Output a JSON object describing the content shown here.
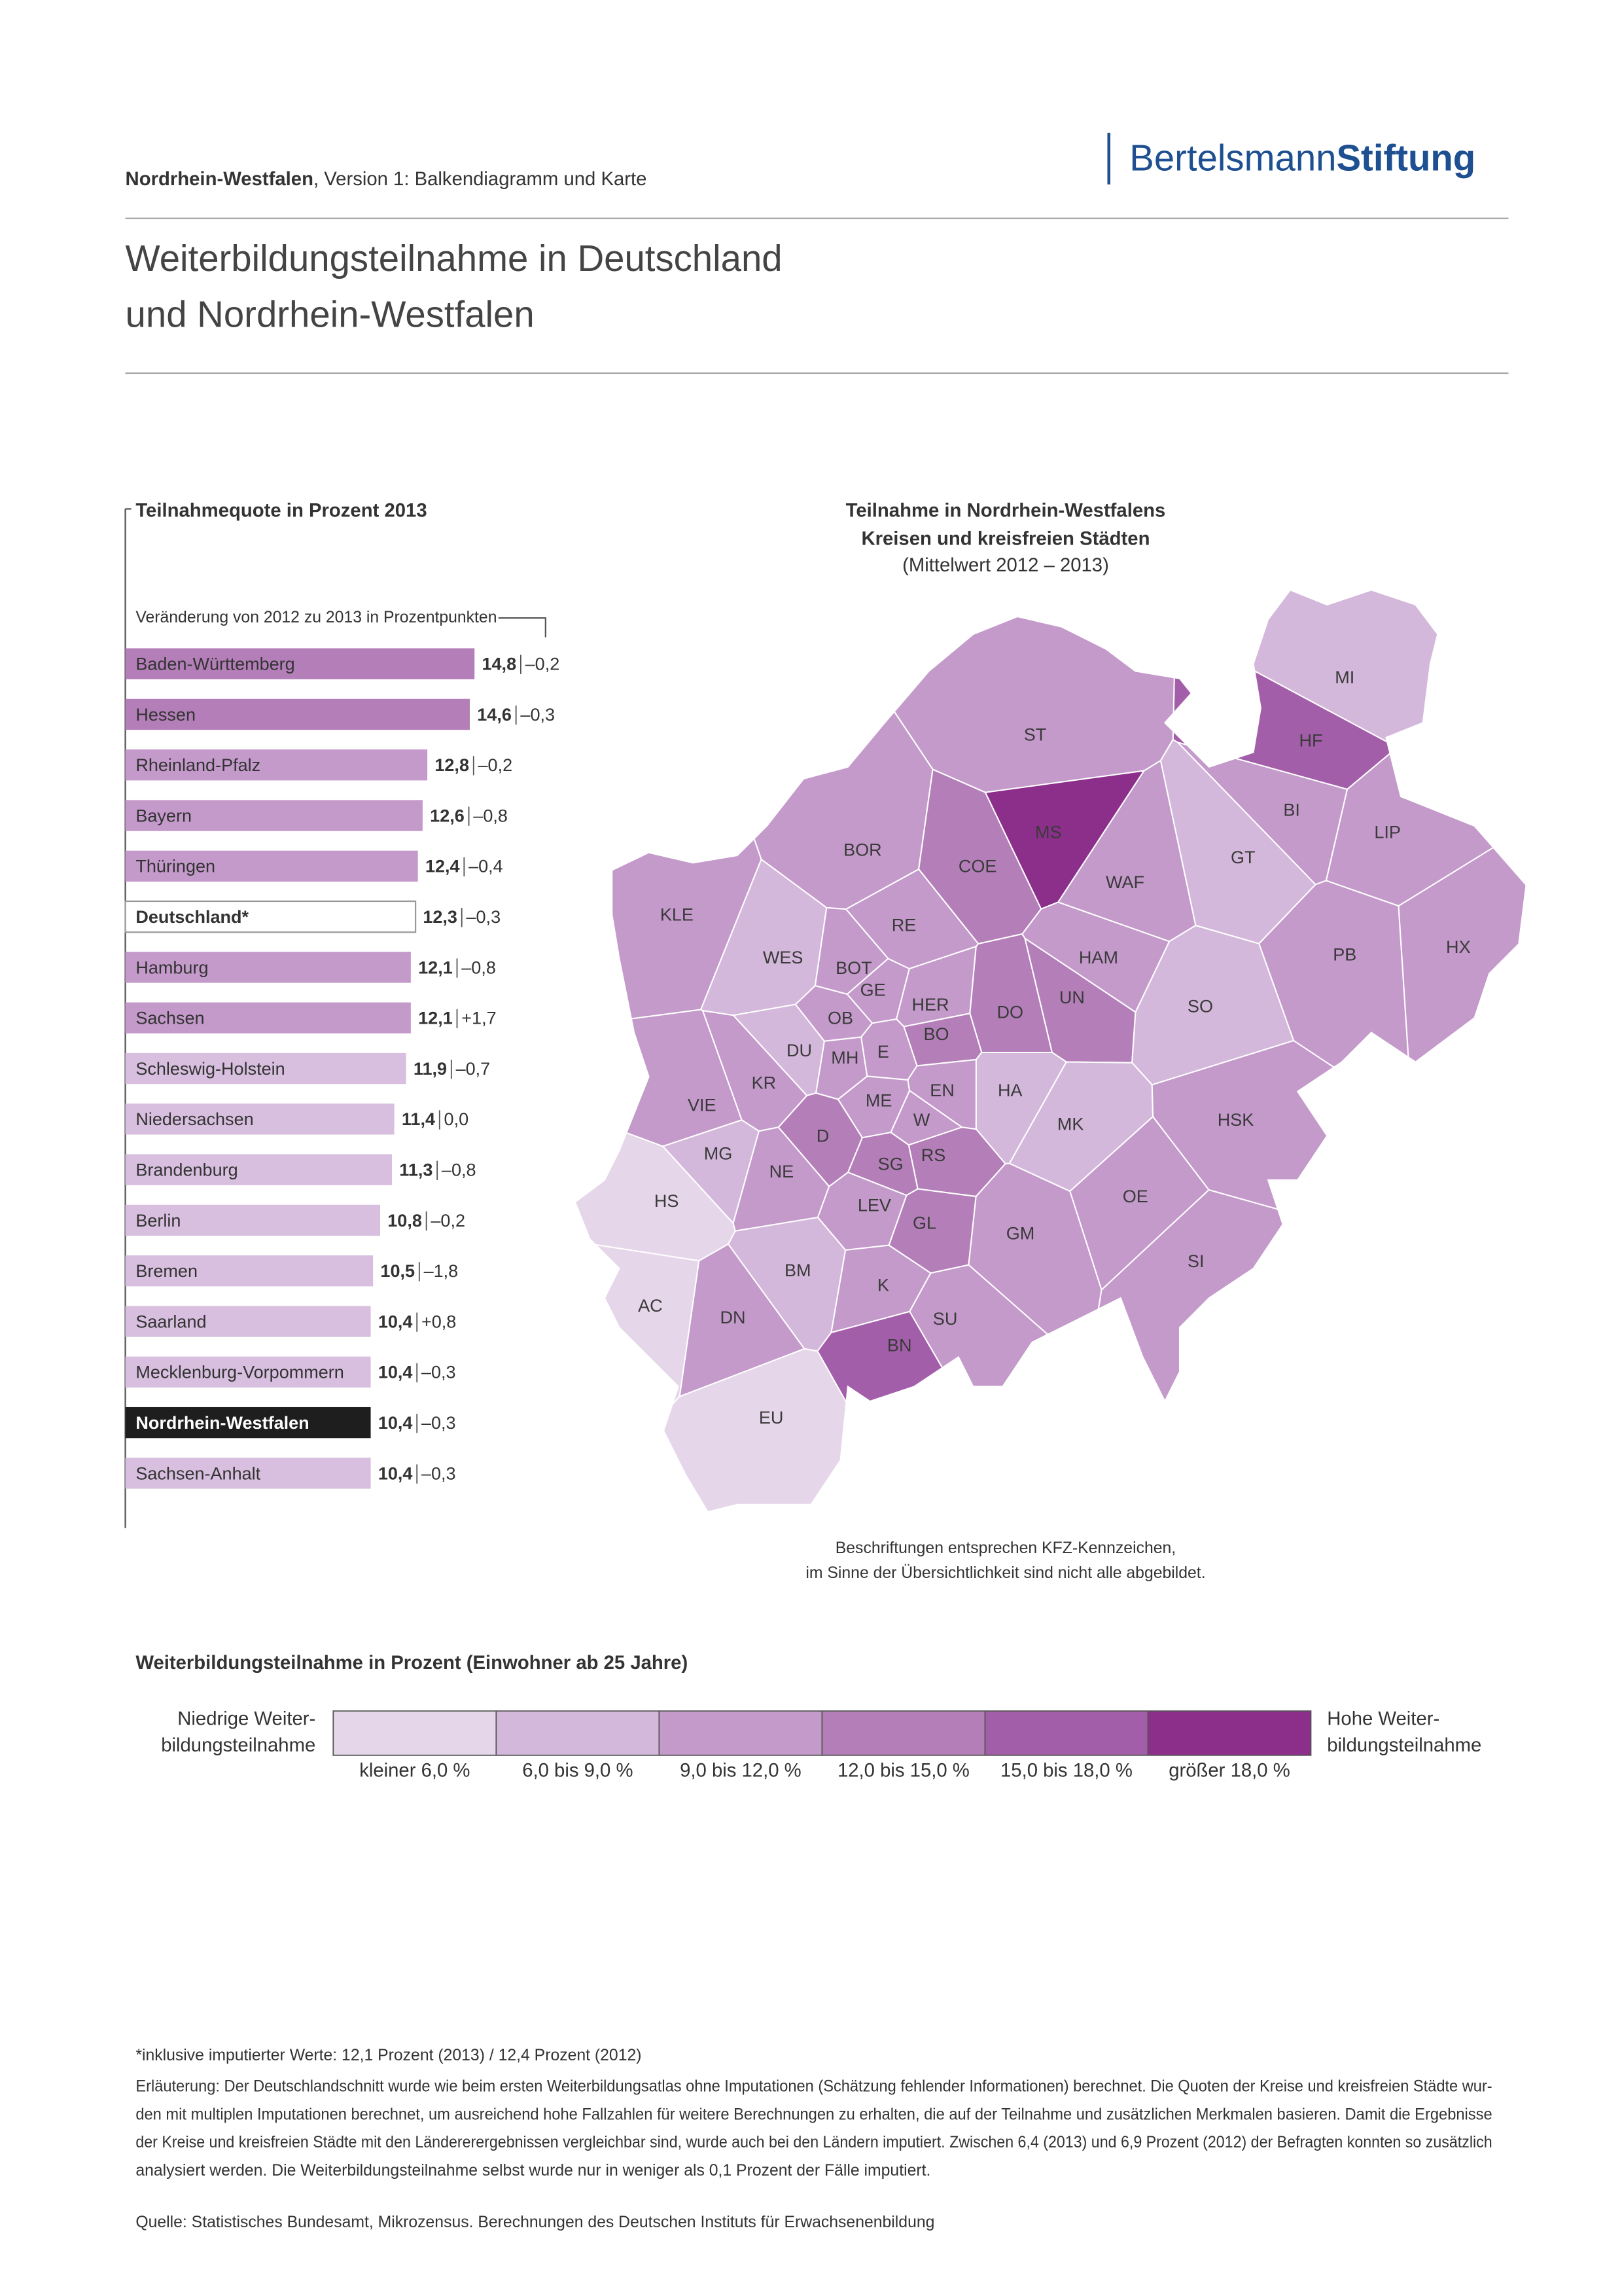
{
  "header": {
    "region": "Nordrhein-Westfalen",
    "version": ", Version 1: Balkendiagramm und Karte",
    "logo": [
      "Bertelsmann",
      "Stiftung"
    ]
  },
  "title": [
    "Weiterbildungsteilnahme in Deutschland",
    "und Nordrhein-Westfalen"
  ],
  "chart_data": {
    "type": "bar",
    "orientation": "horizontal",
    "title": "Teilnahmequote in Prozent 2013",
    "subtitle": "Veränderung von 2012 zu 2013 in Prozentpunkten",
    "categories": [
      "Baden-Württemberg",
      "Hessen",
      "Rheinland-Pfalz",
      "Bayern",
      "Thüringen",
      "Deutschland*",
      "Hamburg",
      "Sachsen",
      "Schleswig-Holstein",
      "Niedersachsen",
      "Brandenburg",
      "Berlin",
      "Bremen",
      "Saarland",
      "Mecklenburg-Vorpommern",
      "Nordrhein-Westfalen",
      "Sachsen-Anhalt"
    ],
    "values": [
      14.8,
      14.6,
      12.8,
      12.6,
      12.4,
      12.3,
      12.1,
      12.1,
      11.9,
      11.4,
      11.3,
      10.8,
      10.5,
      10.4,
      10.4,
      10.4,
      10.4
    ],
    "value_labels": [
      "14,8",
      "14,6",
      "12,8",
      "12,6",
      "12,4",
      "12,3",
      "12,1",
      "12,1",
      "11,9",
      "11,4",
      "11,3",
      "10,8",
      "10,5",
      "10,4",
      "10,4",
      "10,4",
      "10,4"
    ],
    "change_labels": [
      "–0,2",
      "–0,3",
      "–0,2",
      "–0,8",
      "–0,4",
      "–0,3",
      "–0,8",
      "+1,7",
      "–0,7",
      "0,0",
      "–0,8",
      "–0,2",
      "–1,8",
      "+0,8",
      "–0,3",
      "–0,3",
      "–0,3"
    ],
    "colors": [
      "#b47fb9",
      "#b47fb9",
      "#c49acb",
      "#c49acb",
      "#c49acb",
      "#ffffff",
      "#c49acb",
      "#c49acb",
      "#d8bfdf",
      "#d8bfdf",
      "#d8bfdf",
      "#d8bfdf",
      "#d8bfdf",
      "#d8bfdf",
      "#d8bfdf",
      "#1e1e1e",
      "#d8bfdf"
    ]
  },
  "map": {
    "title": [
      "Teilnahme in Nordrhein-Westfalens",
      "Kreisen und kreisfreien Städten",
      "(Mittelwert 2012 – 2013)"
    ],
    "regions": [
      {
        "label": "MI",
        "color": "#d4b8dc"
      },
      {
        "label": "HF",
        "color": "#a35ea9"
      },
      {
        "label": "ST",
        "color": "#c49acb"
      },
      {
        "label": "BI",
        "color": "#c49acb"
      },
      {
        "label": "LIP",
        "color": "#c49acb"
      },
      {
        "label": "MS",
        "color": "#8c2f8b"
      },
      {
        "label": "BOR",
        "color": "#c49acb"
      },
      {
        "label": "COE",
        "color": "#b47fb9"
      },
      {
        "label": "GT",
        "color": "#d4b8dc"
      },
      {
        "label": "WAF",
        "color": "#c49acb"
      },
      {
        "label": "KLE",
        "color": "#c49acb"
      },
      {
        "label": "RE",
        "color": "#c49acb"
      },
      {
        "label": "WES",
        "color": "#d4b8dc"
      },
      {
        "label": "HAM",
        "color": "#c49acb"
      },
      {
        "label": "PB",
        "color": "#c49acb"
      },
      {
        "label": "HX",
        "color": "#c49acb"
      },
      {
        "label": "BOT",
        "color": "#c49acb"
      },
      {
        "label": "GE",
        "color": "#c49acb"
      },
      {
        "label": "HER",
        "color": "#c49acb"
      },
      {
        "label": "DO",
        "color": "#b47fb9"
      },
      {
        "label": "UN",
        "color": "#b47fb9"
      },
      {
        "label": "SO",
        "color": "#d4b8dc"
      },
      {
        "label": "OB",
        "color": "#c49acb"
      },
      {
        "label": "BO",
        "color": "#b47fb9"
      },
      {
        "label": "DU",
        "color": "#d4b8dc"
      },
      {
        "label": "MH",
        "color": "#c49acb"
      },
      {
        "label": "E",
        "color": "#c49acb"
      },
      {
        "label": "KR",
        "color": "#c49acb"
      },
      {
        "label": "VIE",
        "color": "#c49acb"
      },
      {
        "label": "ME",
        "color": "#c49acb"
      },
      {
        "label": "EN",
        "color": "#c49acb"
      },
      {
        "label": "HA",
        "color": "#d4b8dc"
      },
      {
        "label": "W",
        "color": "#c49acb"
      },
      {
        "label": "MK",
        "color": "#d4b8dc"
      },
      {
        "label": "HSK",
        "color": "#c49acb"
      },
      {
        "label": "D",
        "color": "#b47fb9"
      },
      {
        "label": "MG",
        "color": "#d4b8dc"
      },
      {
        "label": "SG",
        "color": "#b47fb9"
      },
      {
        "label": "RS",
        "color": "#b47fb9"
      },
      {
        "label": "NE",
        "color": "#c49acb"
      },
      {
        "label": "HS",
        "color": "#e6d6ea"
      },
      {
        "label": "OE",
        "color": "#c49acb"
      },
      {
        "label": "LEV",
        "color": "#c49acb"
      },
      {
        "label": "GL",
        "color": "#b47fb9"
      },
      {
        "label": "GM",
        "color": "#c49acb"
      },
      {
        "label": "SI",
        "color": "#c49acb"
      },
      {
        "label": "BM",
        "color": "#d4b8dc"
      },
      {
        "label": "K",
        "color": "#c49acb"
      },
      {
        "label": "AC",
        "color": "#e6d6ea"
      },
      {
        "label": "DN",
        "color": "#c49acb"
      },
      {
        "label": "SU",
        "color": "#c49acb"
      },
      {
        "label": "BN",
        "color": "#a35ea9"
      },
      {
        "label": "EU",
        "color": "#e6d6ea"
      }
    ],
    "note": [
      "Beschriftungen entsprechen KFZ-Kennzeichen,",
      "im Sinne der Übersichtlichkeit sind nicht alle abgebildet."
    ]
  },
  "legend": {
    "title": "Weiterbildungsteilnahme in Prozent (Einwohner ab 25 Jahre)",
    "low": [
      "Niedrige Weiter-",
      "bildungsteilnahme"
    ],
    "high": [
      "Hohe Weiter-",
      "bildungsteilnahme"
    ],
    "classes": [
      {
        "label": "kleiner 6,0 %",
        "color": "#e6d6ea"
      },
      {
        "label": "6,0 bis 9,0 %",
        "color": "#d4b8dc"
      },
      {
        "label": "9,0 bis 12,0 %",
        "color": "#c49acb"
      },
      {
        "label": "12,0 bis 15,0 %",
        "color": "#b47fb9"
      },
      {
        "label": "15,0 bis 18,0 %",
        "color": "#a35ea9"
      },
      {
        "label": "größer 18,0 %",
        "color": "#8c2f8b"
      }
    ]
  },
  "footnotes": {
    "asterisk": "*inklusive imputierter Werte: 12,1 Prozent (2013) / 12,4 Prozent (2012)",
    "explanation": [
      "Erläuterung: Der Deutschlandschnitt wurde wie beim ersten Weiterbildungsatlas ohne Imputationen (Schätzung fehlender Informationen) berechnet. Die Quoten der Kreise und kreisfreien Städte wur-",
      "den mit multiplen Imputationen berechnet, um ausreichend hohe Fallzahlen für weitere Berechnungen zu erhalten, die auf der Teilnahme und zusätzlichen Merkmalen basieren. Damit die Ergebnisse",
      "der Kreise und kreisfreien Städte mit den Ländererergebnissen vergleichbar sind, wurde auch bei den Ländern imputiert. Zwischen 6,4 (2013) und 6,9 Prozent (2012) der Befragten konnten so zusätzlich",
      "analysiert werden. Die Weiterbildungsteilnahme selbst wurde nur in weniger als 0,1 Prozent der Fälle imputiert."
    ],
    "source": "Quelle: Statistisches Bundesamt, Mikrozensus. Berechnungen des Deutschen Instituts für Erwachsenenbildung"
  }
}
